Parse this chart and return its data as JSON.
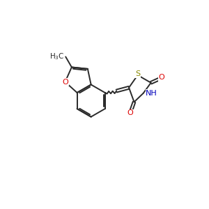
{
  "background_color": "#ffffff",
  "bond_color": "#2a2a2a",
  "atom_colors": {
    "O": "#dd0000",
    "S": "#888800",
    "N": "#0000bb",
    "C": "#2a2a2a"
  },
  "figsize": [
    3.0,
    3.0
  ],
  "dpi": 100
}
